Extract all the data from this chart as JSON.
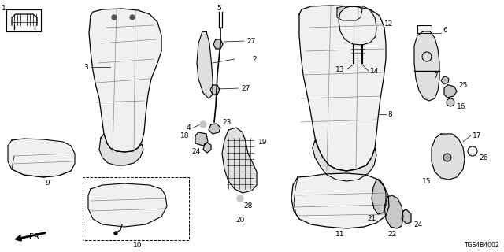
{
  "bg_color": "#ffffff",
  "diagram_ref": "TGS4B4002",
  "line_color": "#000000",
  "text_color": "#000000",
  "fill_light": "#f0f0f0",
  "fill_mid": "#e0e0e0",
  "fill_dark": "#c8c8c8",
  "font_size": 6.5
}
